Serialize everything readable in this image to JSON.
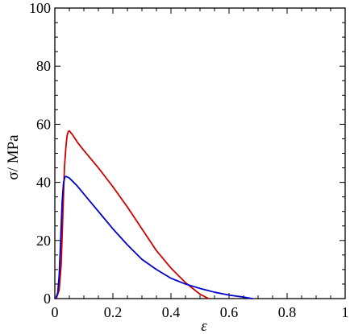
{
  "chart_data": {
    "type": "line",
    "title": "",
    "xlabel": "ε",
    "ylabel": "σ/ MPa",
    "xlim": [
      0,
      1
    ],
    "ylim": [
      0,
      100
    ],
    "x_ticks": [
      "0",
      "0.2",
      "0.4",
      "0.6",
      "0.8",
      "1"
    ],
    "y_ticks": [
      "0",
      "20",
      "40",
      "60",
      "80",
      "100"
    ],
    "x_tick_values": [
      0,
      0.2,
      0.4,
      0.6,
      0.8,
      1
    ],
    "y_tick_values": [
      0,
      20,
      40,
      60,
      80,
      100
    ],
    "grid": false,
    "series": [
      {
        "color": "#cc0000",
        "x": [
          0.005,
          0.015,
          0.022,
          0.028,
          0.033,
          0.038,
          0.042,
          0.046,
          0.05,
          0.06,
          0.08,
          0.1,
          0.15,
          0.2,
          0.25,
          0.3,
          0.35,
          0.4,
          0.45,
          0.5,
          0.53
        ],
        "y": [
          0,
          3,
          12,
          30,
          45,
          52,
          56,
          57.5,
          57.7,
          56.5,
          53.5,
          51,
          45,
          38.5,
          31.5,
          24,
          16.5,
          10.5,
          5.5,
          1.5,
          0
        ]
      },
      {
        "color": "#0000cc",
        "x": [
          0.003,
          0.01,
          0.015,
          0.02,
          0.025,
          0.03,
          0.035,
          0.04,
          0.05,
          0.075,
          0.1,
          0.15,
          0.2,
          0.25,
          0.3,
          0.35,
          0.4,
          0.45,
          0.5,
          0.55,
          0.6,
          0.65,
          0.68
        ],
        "y": [
          0,
          2,
          8,
          20,
          33,
          40,
          42,
          42,
          41.5,
          39,
          36,
          30,
          24,
          18.5,
          13.5,
          10,
          7,
          5,
          3.5,
          2.2,
          1.2,
          0.5,
          0
        ]
      }
    ]
  }
}
